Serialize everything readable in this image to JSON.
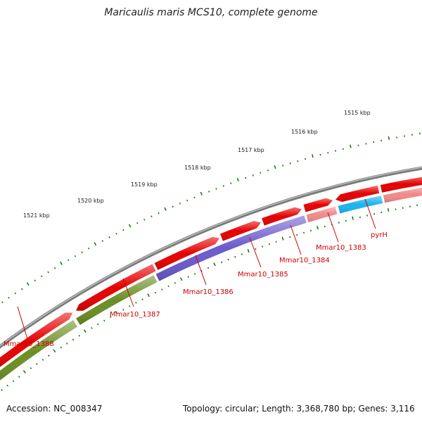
{
  "header": {
    "title": "Maricaulis maris MCS10, complete genome"
  },
  "footer": {
    "accession": "Accession: NC_008347",
    "summary": "Topology: circular; Length: 3,368,780 bp; Genes: 3,116"
  },
  "scale": {
    "labels": [
      "1521 kbp",
      "1520 kbp",
      "1519 kbp",
      "1518 kbp",
      "1517 kbp",
      "1516 kbp",
      "1515 kbp"
    ]
  },
  "colors": {
    "backbone": "#7a7a7a",
    "cds": "#e60000",
    "cds_light": "#f08a8a",
    "gene_olive": "#6b8e23",
    "gene_purple": "#6a5acd",
    "gene_cyan": "#19b4f0",
    "tick": "#1a7a1a",
    "label": "#cc0000"
  },
  "genes": [
    {
      "label": "Mmar10_1388"
    },
    {
      "label": "Mmar10_1387"
    },
    {
      "label": "Mmar10_1386"
    },
    {
      "label": "Mmar10_1385"
    },
    {
      "label": "Mmar10_1384"
    },
    {
      "label": "Mmar10_1383"
    },
    {
      "label": "pyrH"
    }
  ]
}
